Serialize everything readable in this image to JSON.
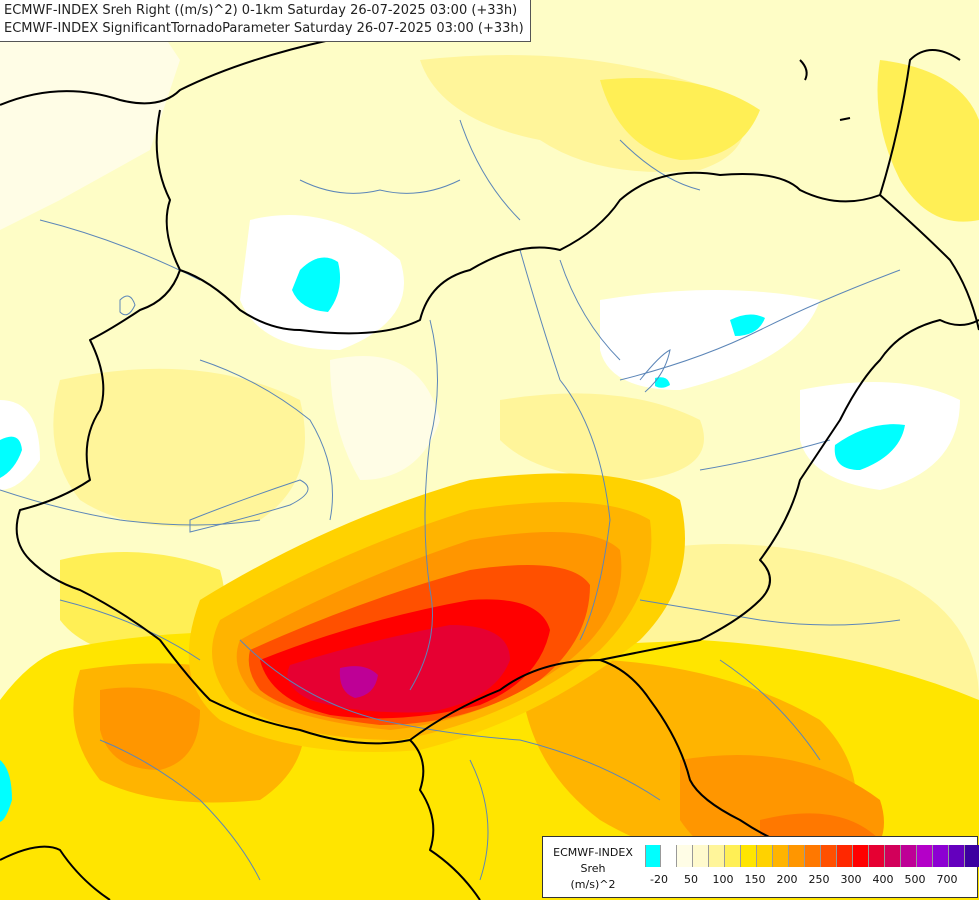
{
  "titles": {
    "line1": "ECMWF-INDEX Sreh Right ((m/s)^2) 0-1km Saturday 26-07-2025 03:00 (+33h)",
    "line2": "ECMWF-INDEX SignificantTornadoParameter Saturday 26-07-2025 03:00 (+33h)"
  },
  "legend": {
    "source": "ECMWF-INDEX",
    "parameter": "Sreh",
    "unit": "(m/s)^2",
    "colors": [
      "#00ffff",
      "#ffffff",
      "#fffde6",
      "#fffacd",
      "#fff59a",
      "#ffef55",
      "#ffe500",
      "#ffd200",
      "#ffb400",
      "#ff9600",
      "#ff7800",
      "#ff5000",
      "#ff2800",
      "#ff0000",
      "#e60032",
      "#d2005a",
      "#be0096",
      "#b400c8",
      "#8c00d2",
      "#6400be",
      "#3c00a0",
      "#1e0078"
    ],
    "ticks": [
      "-20",
      "50",
      "100",
      "150",
      "200",
      "250",
      "300",
      "400",
      "500",
      "700"
    ]
  },
  "icons": [
    "colorbar-legend",
    "country-border-lines",
    "river-lines"
  ]
}
